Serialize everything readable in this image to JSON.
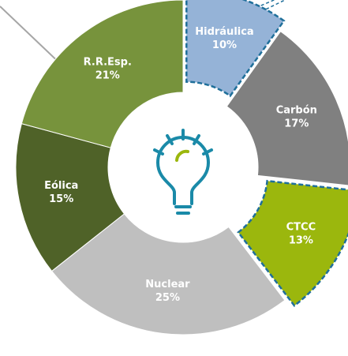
{
  "chart_data": {
    "type": "donut",
    "categories": [
      "Hidráulica",
      "Carbón",
      "CTCC",
      "Nuclear",
      "Eólica",
      "R.R.Esp."
    ],
    "values": [
      10,
      17,
      13,
      25,
      15,
      21
    ],
    "value_labels": [
      "10%",
      "17%",
      "13%",
      "25%",
      "15%",
      "21%"
    ],
    "colors": [
      "#95b3d7",
      "#808080",
      "#9bb70d",
      "#bfbfbf",
      "#4f6228",
      "#77933c"
    ],
    "exploded": [
      0,
      2
    ]
  }
}
